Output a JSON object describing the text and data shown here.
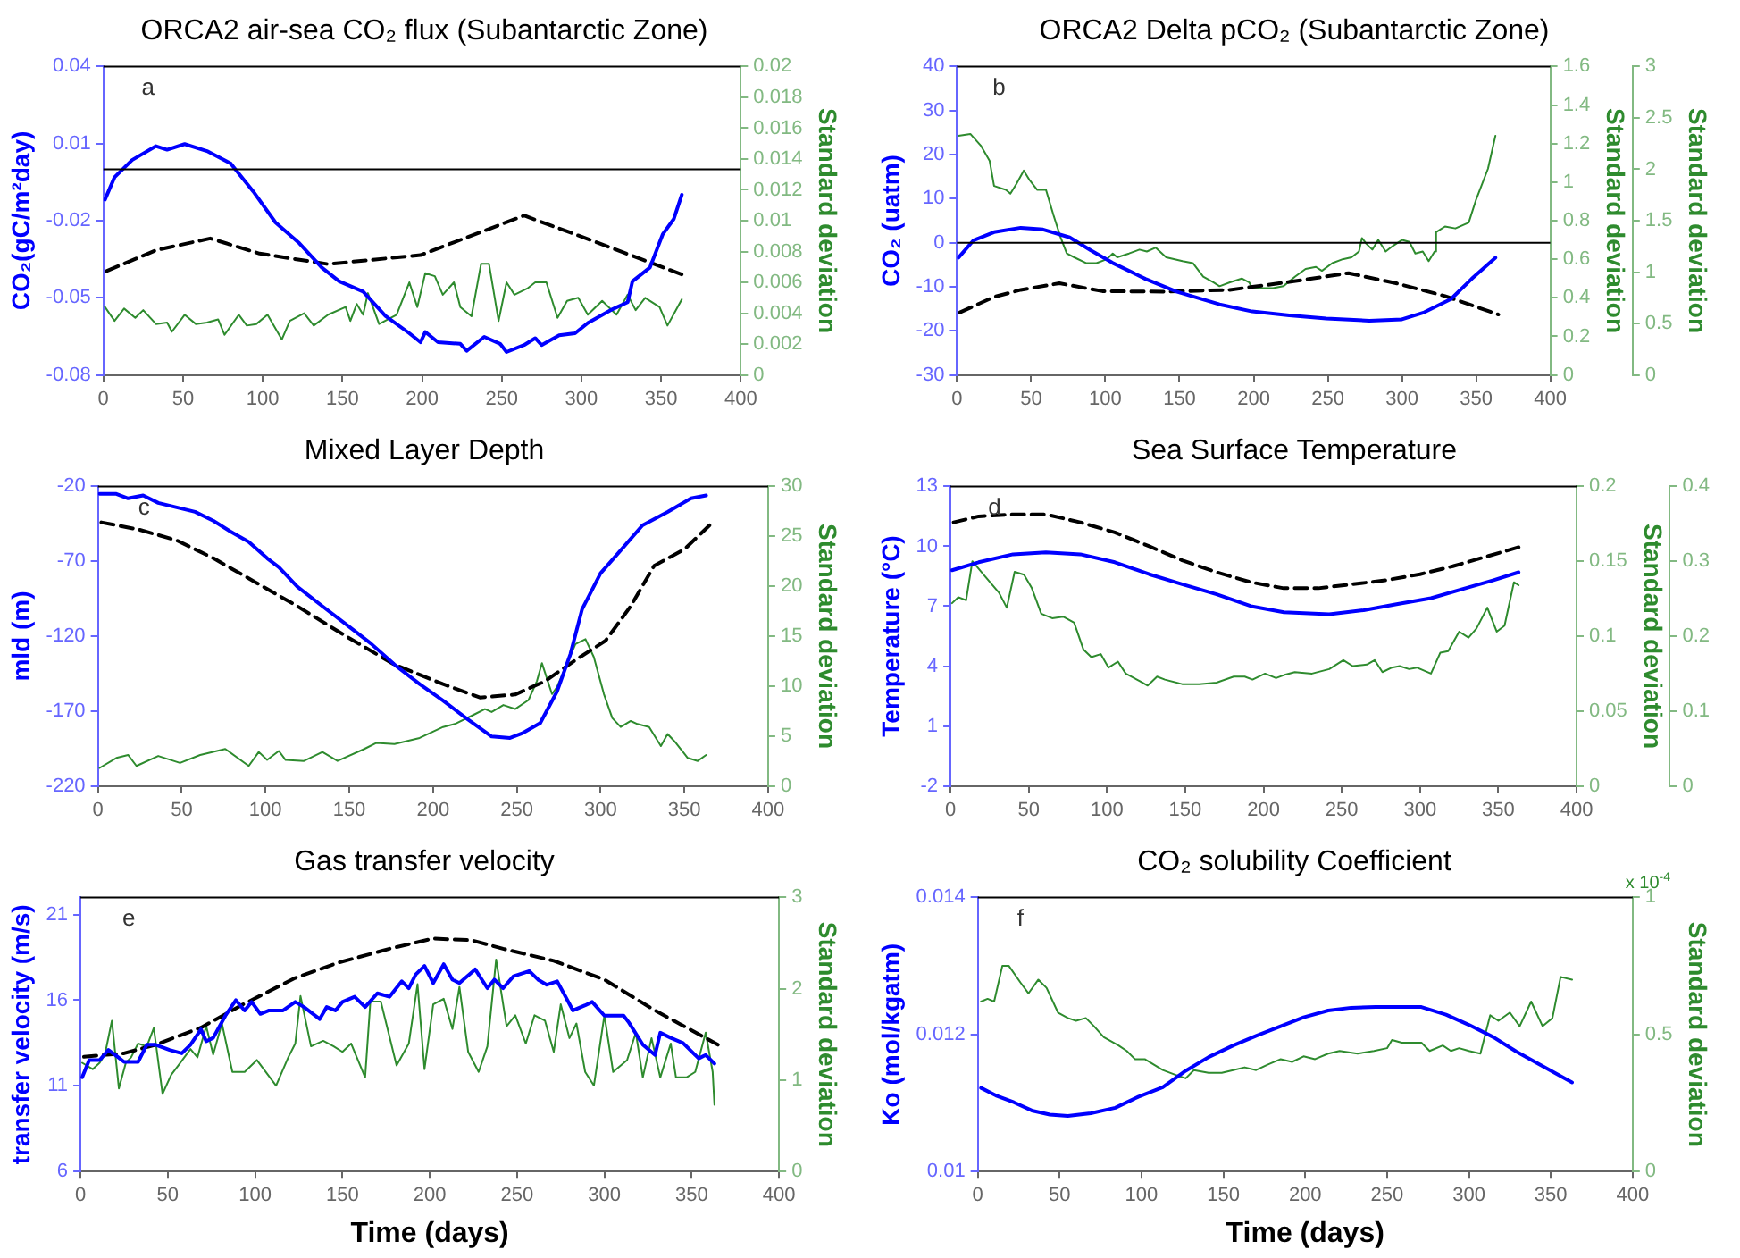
{
  "chart_data": [
    {
      "type": "line",
      "title": "ORCA2 air-sea CO₂ flux (Subantarctic Zone)",
      "ylabel": "CO₂(gC/m²day)",
      "y2label": "Standard deviation",
      "annotations": [
        "a"
      ],
      "xlim": [
        0,
        400
      ],
      "xticks": [
        0,
        50,
        100,
        150,
        200,
        250,
        300,
        350,
        400
      ],
      "ylim": [
        -0.08,
        0.04
      ],
      "yticks": [
        -0.08,
        -0.05,
        -0.02,
        0.01,
        0.04
      ],
      "y2lim": [
        0,
        0.02
      ],
      "y2ticks": [
        0,
        0.002,
        0.004,
        0.006,
        0.008,
        0.01,
        0.012,
        0.014,
        0.016,
        0.018,
        0.02
      ],
      "ref_lines": [
        {
          "axis": "y",
          "value": 0,
          "color": "#000000"
        }
      ],
      "series": [
        {
          "color": "#0000ff",
          "x": [
            1,
            7,
            18,
            33,
            40,
            51,
            65,
            80,
            94,
            108,
            123,
            137,
            148,
            163,
            177,
            192,
            199,
            202,
            210,
            224,
            228,
            239,
            249,
            253,
            264,
            271,
            275,
            286,
            296,
            304,
            318,
            329,
            332,
            343,
            351,
            358,
            363
          ],
          "values": [
            -0.0118,
            -0.0031,
            0.0036,
            0.009,
            0.0076,
            0.0098,
            0.0071,
            0.0022,
            -0.0086,
            -0.0207,
            -0.0288,
            -0.0382,
            -0.0436,
            -0.0476,
            -0.0571,
            -0.0638,
            -0.0673,
            -0.0633,
            -0.0673,
            -0.0679,
            -0.0706,
            -0.0652,
            -0.0679,
            -0.0711,
            -0.0684,
            -0.0657,
            -0.0684,
            -0.0646,
            -0.0638,
            -0.0598,
            -0.0549,
            -0.0517,
            -0.0436,
            -0.0382,
            -0.0253,
            -0.0193,
            -0.0099
          ]
        },
        {
          "color": "#000000",
          "line_style": "dashed",
          "x": [
            2,
            33,
            67,
            98,
            141,
            199,
            264,
            303,
            365
          ],
          "values": [
            -0.0396,
            -0.0315,
            -0.0269,
            -0.0328,
            -0.0369,
            -0.0334,
            -0.018,
            -0.0269,
            -0.0414
          ]
        },
        {
          "color": "#2e8b2e",
          "axis": "y2",
          "x": [
            1,
            7,
            13,
            20,
            25,
            33,
            40,
            43,
            51,
            58,
            65,
            72,
            76,
            85,
            90,
            96,
            103,
            112,
            117,
            126,
            132,
            141,
            152,
            155,
            159,
            163,
            166,
            173,
            184,
            192,
            197,
            202,
            208,
            213,
            220,
            224,
            231,
            237,
            242,
            248,
            253,
            258,
            266,
            271,
            278,
            285,
            291,
            298,
            304,
            313,
            322,
            329,
            334,
            340,
            349,
            354,
            363
          ],
          "values": [
            0.0044,
            0.0035,
            0.0043,
            0.0037,
            0.0042,
            0.0033,
            0.0034,
            0.0028,
            0.0039,
            0.0033,
            0.0034,
            0.0036,
            0.0026,
            0.0039,
            0.0032,
            0.0033,
            0.0039,
            0.0023,
            0.0035,
            0.004,
            0.0032,
            0.0039,
            0.0044,
            0.0035,
            0.0046,
            0.0039,
            0.0053,
            0.0033,
            0.0039,
            0.006,
            0.0044,
            0.0066,
            0.0064,
            0.0052,
            0.006,
            0.0044,
            0.0038,
            0.0072,
            0.0072,
            0.0035,
            0.006,
            0.0052,
            0.0056,
            0.006,
            0.006,
            0.0037,
            0.0048,
            0.005,
            0.0039,
            0.0048,
            0.0039,
            0.0052,
            0.0042,
            0.005,
            0.0044,
            0.0032,
            0.0049
          ]
        }
      ]
    },
    {
      "type": "line",
      "title": "ORCA2 Delta pCO₂ (Subantarctic Zone)",
      "ylabel": "CO₂ (uatm)",
      "y2label": "Standard deviation",
      "y3label": "Standard deviation",
      "annotations": [
        "b"
      ],
      "xlim": [
        0,
        400
      ],
      "xticks": [
        0,
        50,
        100,
        150,
        200,
        250,
        300,
        350,
        400
      ],
      "ylim": [
        -30,
        40
      ],
      "yticks": [
        -30,
        -20,
        -10,
        0,
        10,
        20,
        30,
        40
      ],
      "y2lim": [
        0,
        1.6
      ],
      "y2ticks": [
        0,
        0.2,
        0.4,
        0.6,
        0.8,
        1,
        1.2,
        1.4,
        1.6
      ],
      "y3lim": [
        0,
        3
      ],
      "y3ticks": [
        0,
        0.5,
        1,
        1.5,
        2,
        2.5,
        3
      ],
      "ref_lines": [
        {
          "axis": "y",
          "value": 0,
          "color": "#000000"
        }
      ],
      "series": [
        {
          "color": "#0000ff",
          "x": [
            1,
            11,
            25,
            43,
            58,
            76,
            90,
            105,
            127,
            148,
            177,
            199,
            224,
            249,
            278,
            300,
            315,
            333,
            347,
            363
          ],
          "values": [
            -3.4,
            0.5,
            2.4,
            3.4,
            3,
            1.2,
            -1.7,
            -4.6,
            -8.2,
            -11.1,
            -14,
            -15.6,
            -16.5,
            -17.2,
            -17.7,
            -17.4,
            -15.8,
            -12.8,
            -8.2,
            -3.4
          ]
        },
        {
          "color": "#000000",
          "line_style": "dashed",
          "x": [
            2,
            25,
            43,
            69,
            98,
            141,
            184,
            224,
            264,
            296,
            329,
            365
          ],
          "values": [
            -15.8,
            -12.3,
            -10.7,
            -9.2,
            -11,
            -11.1,
            -10.7,
            -8.9,
            -6.9,
            -9.2,
            -12.1,
            -16.3
          ]
        },
        {
          "color": "#2e8b2e",
          "axis": "y2",
          "x": [
            1,
            9,
            16,
            22,
            25,
            33,
            36,
            40,
            45,
            49,
            54,
            60,
            65,
            70,
            74,
            79,
            87,
            94,
            101,
            105,
            108,
            116,
            123,
            128,
            134,
            141,
            152,
            159,
            166,
            173,
            177,
            184,
            192,
            197,
            199,
            206,
            213,
            220,
            228,
            235,
            242,
            246,
            253,
            260,
            266,
            271,
            273,
            276,
            280,
            284,
            289,
            294,
            300,
            305,
            309,
            314,
            318,
            322,
            323,
            329,
            336,
            345,
            350,
            358,
            363
          ],
          "values": [
            1.24,
            1.25,
            1.19,
            1.11,
            0.98,
            0.96,
            0.94,
            0.99,
            1.06,
            1.01,
            0.96,
            0.96,
            0.83,
            0.71,
            0.63,
            0.61,
            0.58,
            0.58,
            0.6,
            0.63,
            0.61,
            0.63,
            0.65,
            0.64,
            0.66,
            0.61,
            0.59,
            0.58,
            0.51,
            0.48,
            0.46,
            0.48,
            0.5,
            0.48,
            0.45,
            0.45,
            0.45,
            0.46,
            0.51,
            0.55,
            0.56,
            0.54,
            0.58,
            0.6,
            0.61,
            0.64,
            0.71,
            0.68,
            0.65,
            0.7,
            0.64,
            0.67,
            0.7,
            0.69,
            0.63,
            0.64,
            0.59,
            0.64,
            0.74,
            0.77,
            0.76,
            0.79,
            0.91,
            1.07,
            1.24
          ]
        }
      ]
    },
    {
      "type": "line",
      "title": "Mixed Layer Depth",
      "ylabel": "mld (m)",
      "y2label": "Standard deviation",
      "annotations": [
        "c"
      ],
      "xlim": [
        0,
        400
      ],
      "xticks": [
        0,
        50,
        100,
        150,
        200,
        250,
        300,
        350,
        400
      ],
      "ylim": [
        -220,
        -20
      ],
      "yticks": [
        -220,
        -170,
        -120,
        -70,
        -20
      ],
      "y2lim": [
        0,
        30
      ],
      "y2ticks": [
        0,
        5,
        10,
        15,
        20,
        25,
        30
      ],
      "series": [
        {
          "color": "#0000ff",
          "x": [
            1,
            11,
            18,
            27,
            36,
            47,
            58,
            69,
            79,
            90,
            101,
            108,
            119,
            134,
            148,
            163,
            177,
            192,
            206,
            220,
            235,
            246,
            253,
            264,
            274,
            282,
            289,
            300,
            311,
            325,
            340,
            354,
            363
          ],
          "values": [
            -25,
            -25,
            -28,
            -26,
            -31,
            -34,
            -37,
            -43,
            -50,
            -57,
            -68,
            -74,
            -87,
            -100,
            -112,
            -125,
            -139,
            -152,
            -163,
            -175,
            -187,
            -188,
            -185,
            -178,
            -157,
            -132,
            -102,
            -78,
            -64,
            -46,
            -37,
            -28,
            -26
          ]
        },
        {
          "color": "#000000",
          "line_style": "dashed",
          "x": [
            2,
            25,
            47,
            69,
            94,
            119,
            148,
            177,
            206,
            228,
            249,
            267,
            285,
            303,
            318,
            332,
            350,
            365
          ],
          "values": [
            -44,
            -49,
            -56,
            -68,
            -84,
            -100,
            -120,
            -139,
            -152,
            -161,
            -159,
            -150,
            -136,
            -123,
            -100,
            -73,
            -62,
            -46
          ]
        },
        {
          "color": "#2e8b2e",
          "axis": "y2",
          "x": [
            1,
            11,
            18,
            23,
            36,
            49,
            61,
            76,
            90,
            96,
            101,
            108,
            112,
            123,
            134,
            143,
            159,
            166,
            177,
            192,
            206,
            213,
            224,
            231,
            235,
            242,
            249,
            257,
            262,
            265,
            271,
            274,
            285,
            291,
            296,
            302,
            307,
            312,
            318,
            322,
            329,
            336,
            340,
            345,
            352,
            358,
            363
          ],
          "values": [
            1.8,
            2.8,
            3.1,
            2,
            3,
            2.3,
            3.1,
            3.7,
            2,
            3.4,
            2.6,
            3.5,
            2.6,
            2.5,
            3.4,
            2.5,
            3.7,
            4.3,
            4.2,
            4.8,
            5.9,
            6.2,
            7.1,
            7.7,
            7.4,
            8.1,
            7.7,
            8.6,
            10.5,
            12.3,
            9.2,
            9.9,
            14.2,
            14.7,
            12.9,
            9.2,
            6.8,
            5.9,
            6.5,
            6.2,
            5.9,
            4,
            5.2,
            4.3,
            2.8,
            2.5,
            3.1
          ]
        }
      ]
    },
    {
      "type": "line",
      "title": "Sea Surface Temperature",
      "ylabel": "Temperature (°C)",
      "y2label": "Standard deviation",
      "annotations": [
        "d"
      ],
      "xlim": [
        0,
        400
      ],
      "xticks": [
        0,
        50,
        100,
        150,
        200,
        250,
        300,
        350,
        400
      ],
      "ylim": [
        -2,
        13
      ],
      "yticks": [
        -2,
        1,
        4,
        7,
        10,
        13
      ],
      "y2lim": [
        0,
        0.2
      ],
      "y2ticks": [
        0,
        0.05,
        0.1,
        0.15,
        0.2
      ],
      "y3lim": [
        0,
        0.4
      ],
      "y3ticks": [
        0,
        0.1,
        0.2,
        0.3,
        0.4
      ],
      "series": [
        {
          "color": "#0000ff",
          "x": [
            1,
            18,
            40,
            61,
            83,
            105,
            127,
            148,
            170,
            192,
            213,
            242,
            264,
            285,
            307,
            329,
            347,
            363
          ],
          "values": [
            8.8,
            9.2,
            9.6,
            9.7,
            9.6,
            9.2,
            8.6,
            8.1,
            7.6,
            7,
            6.7,
            6.6,
            6.8,
            7.1,
            7.4,
            7.9,
            8.3,
            8.7
          ]
        },
        {
          "color": "#000000",
          "line_style": "dashed",
          "x": [
            2,
            18,
            40,
            61,
            83,
            105,
            127,
            148,
            170,
            192,
            213,
            235,
            257,
            278,
            300,
            321,
            343,
            365
          ],
          "values": [
            11.2,
            11.5,
            11.6,
            11.6,
            11.2,
            10.7,
            10,
            9.3,
            8.7,
            8.2,
            7.9,
            7.9,
            8.1,
            8.3,
            8.6,
            9,
            9.5,
            10
          ]
        },
        {
          "color": "#2e8b2e",
          "axis": "y2",
          "x": [
            1,
            5,
            10,
            14,
            22,
            31,
            36,
            41,
            47,
            52,
            58,
            65,
            72,
            79,
            85,
            90,
            96,
            101,
            107,
            112,
            121,
            126,
            132,
            137,
            148,
            159,
            170,
            181,
            188,
            193,
            201,
            208,
            213,
            220,
            231,
            242,
            251,
            257,
            266,
            271,
            276,
            282,
            287,
            293,
            298,
            307,
            313,
            318,
            325,
            331,
            336,
            343,
            349,
            354,
            360,
            363
          ],
          "values": [
            0.122,
            0.126,
            0.124,
            0.15,
            0.14,
            0.129,
            0.119,
            0.143,
            0.141,
            0.132,
            0.115,
            0.112,
            0.113,
            0.109,
            0.091,
            0.086,
            0.088,
            0.079,
            0.083,
            0.075,
            0.07,
            0.067,
            0.073,
            0.071,
            0.068,
            0.068,
            0.069,
            0.073,
            0.073,
            0.071,
            0.075,
            0.072,
            0.074,
            0.076,
            0.075,
            0.078,
            0.084,
            0.08,
            0.081,
            0.084,
            0.076,
            0.079,
            0.08,
            0.078,
            0.079,
            0.075,
            0.089,
            0.09,
            0.103,
            0.099,
            0.105,
            0.119,
            0.103,
            0.107,
            0.136,
            0.134
          ]
        }
      ]
    },
    {
      "type": "line",
      "title": "Gas transfer velocity",
      "xlabel": "Time (days)",
      "ylabel": "transfer velocity (m/s)",
      "y2label": "Standard deviation",
      "annotations": [
        "e"
      ],
      "xlim": [
        0,
        400
      ],
      "xticks": [
        0,
        50,
        100,
        150,
        200,
        250,
        300,
        350,
        400
      ],
      "ylim": [
        6,
        22
      ],
      "yticks": [
        6,
        11,
        16,
        21
      ],
      "y2lim": [
        0,
        3
      ],
      "y2ticks": [
        0,
        1,
        2,
        3
      ],
      "series": [
        {
          "color": "#0000ff",
          "x": [
            1,
            5,
            11,
            16,
            20,
            25,
            33,
            38,
            43,
            51,
            58,
            63,
            69,
            72,
            76,
            83,
            89,
            94,
            98,
            103,
            108,
            116,
            123,
            128,
            137,
            141,
            146,
            150,
            157,
            163,
            170,
            177,
            184,
            188,
            192,
            197,
            202,
            208,
            213,
            217,
            226,
            233,
            237,
            242,
            248,
            257,
            262,
            267,
            273,
            282,
            289,
            293,
            300,
            311,
            314,
            322,
            329,
            332,
            338,
            345,
            354,
            358,
            363
          ],
          "values": [
            11.5,
            12.5,
            12.5,
            13.1,
            12.8,
            12.4,
            12.4,
            13.4,
            13.4,
            13.1,
            12.9,
            13.4,
            14.3,
            13.6,
            13.8,
            15.1,
            16,
            15.4,
            15.9,
            15.2,
            15.4,
            15.4,
            15.9,
            15.6,
            14.9,
            15.6,
            15.4,
            15.9,
            16.2,
            15.6,
            16.4,
            16.2,
            17.1,
            16.7,
            17.5,
            18,
            17,
            18.1,
            17.2,
            17,
            17.8,
            16.7,
            17.2,
            16.7,
            17.4,
            17.7,
            17.2,
            16.9,
            17.1,
            15.4,
            15.7,
            15.9,
            15.1,
            15.1,
            14.7,
            13.4,
            12.8,
            14.1,
            13.8,
            13.5,
            12.6,
            12.8,
            12.3
          ]
        },
        {
          "color": "#000000",
          "line_style": "dashed",
          "x": [
            2,
            25,
            43,
            69,
            94,
            123,
            148,
            177,
            202,
            224,
            242,
            271,
            300,
            329,
            365
          ],
          "values": [
            12.7,
            12.9,
            13.4,
            14.4,
            15.8,
            17.3,
            18.2,
            19,
            19.6,
            19.5,
            19,
            18.3,
            17.2,
            15.4,
            13.4
          ]
        },
        {
          "color": "#2e8b2e",
          "axis": "y2",
          "x": [
            1,
            7,
            11,
            14,
            18,
            22,
            26,
            29,
            33,
            38,
            42,
            47,
            52,
            56,
            63,
            67,
            72,
            76,
            81,
            87,
            94,
            101,
            112,
            119,
            123,
            126,
            132,
            139,
            145,
            150,
            155,
            163,
            166,
            172,
            181,
            188,
            193,
            197,
            202,
            208,
            213,
            217,
            222,
            228,
            233,
            238,
            244,
            249,
            255,
            260,
            266,
            271,
            275,
            280,
            284,
            289,
            294,
            300,
            305,
            313,
            318,
            322,
            327,
            332,
            338,
            341,
            347,
            352,
            358,
            362,
            363
          ],
          "values": [
            1.19,
            1.12,
            1.19,
            1.28,
            1.65,
            0.91,
            1.19,
            1.25,
            1.4,
            1.37,
            1.57,
            0.85,
            1.06,
            1.16,
            1.34,
            1.25,
            1.59,
            1.28,
            1.62,
            1.09,
            1.09,
            1.22,
            0.94,
            1.25,
            1.4,
            1.92,
            1.37,
            1.43,
            1.37,
            1.31,
            1.4,
            1.03,
            1.86,
            1.86,
            1.16,
            1.4,
            2.05,
            1.12,
            1.83,
            1.89,
            1.56,
            2.02,
            1.31,
            1.09,
            1.37,
            2.32,
            1.59,
            1.71,
            1.4,
            1.71,
            1.65,
            1.31,
            1.83,
            1.46,
            1.62,
            1.09,
            0.94,
            1.71,
            1.09,
            1.22,
            1.52,
            1.03,
            1.46,
            1.03,
            1.4,
            1.03,
            1.03,
            1.09,
            1.52,
            1.09,
            0.73
          ]
        }
      ]
    },
    {
      "type": "line",
      "title": "CO₂ solubility Coefficient",
      "xlabel": "Time (days)",
      "ylabel": "Ko (mol/kgatm)",
      "y2label": "Standard deviation",
      "annotations": [
        "f",
        "x 10$^{-4}$"
      ],
      "xlim": [
        0,
        400
      ],
      "xticks": [
        0,
        50,
        100,
        150,
        200,
        250,
        300,
        350,
        400
      ],
      "ylim": [
        0.01,
        0.014
      ],
      "yticks": [
        0.01,
        0.012,
        0.014
      ],
      "y2lim": [
        0,
        1
      ],
      "y2ticks": [
        0,
        0.5,
        1
      ],
      "series": [
        {
          "color": "#0000ff",
          "x": [
            2,
            11,
            22,
            33,
            44,
            55,
            69,
            84,
            98,
            113,
            127,
            141,
            156,
            170,
            185,
            199,
            214,
            228,
            243,
            257,
            271,
            286,
            300,
            315,
            329,
            344,
            363
          ],
          "values": [
            0.01122,
            0.01111,
            0.01101,
            0.01089,
            0.01083,
            0.01081,
            0.01085,
            0.01093,
            0.01109,
            0.01123,
            0.01147,
            0.01167,
            0.01184,
            0.01198,
            0.01212,
            0.01225,
            0.01235,
            0.01239,
            0.0124,
            0.0124,
            0.0124,
            0.01229,
            0.01214,
            0.01196,
            0.01175,
            0.01155,
            0.0113
          ]
        },
        {
          "color": "#2e8b2e",
          "axis": "y2",
          "x": [
            2,
            6,
            10,
            15,
            19,
            26,
            31,
            37,
            42,
            49,
            55,
            60,
            66,
            71,
            77,
            86,
            91,
            96,
            102,
            113,
            122,
            127,
            132,
            141,
            149,
            156,
            163,
            170,
            177,
            185,
            192,
            199,
            206,
            214,
            221,
            232,
            242,
            250,
            253,
            259,
            266,
            271,
            276,
            284,
            289,
            294,
            300,
            307,
            313,
            318,
            325,
            331,
            338,
            345,
            351,
            356,
            363
          ],
          "values": [
            0.62,
            0.63,
            0.62,
            0.75,
            0.75,
            0.69,
            0.65,
            0.7,
            0.67,
            0.58,
            0.56,
            0.55,
            0.56,
            0.53,
            0.49,
            0.46,
            0.44,
            0.41,
            0.41,
            0.37,
            0.35,
            0.34,
            0.37,
            0.36,
            0.36,
            0.37,
            0.38,
            0.37,
            0.39,
            0.41,
            0.4,
            0.42,
            0.41,
            0.43,
            0.44,
            0.43,
            0.44,
            0.45,
            0.48,
            0.47,
            0.47,
            0.47,
            0.44,
            0.46,
            0.44,
            0.45,
            0.44,
            0.43,
            0.57,
            0.55,
            0.58,
            0.53,
            0.62,
            0.53,
            0.56,
            0.71,
            0.7
          ]
        }
      ]
    }
  ]
}
